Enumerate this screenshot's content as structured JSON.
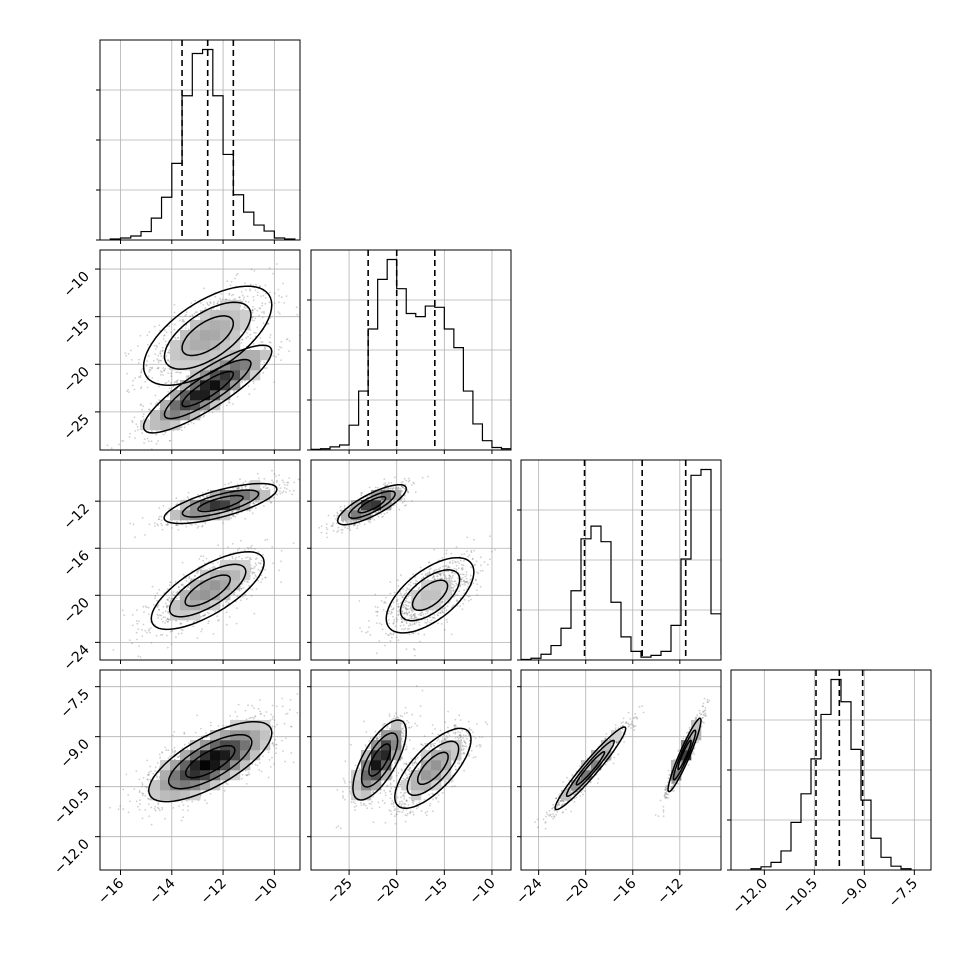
{
  "chart_data": {
    "type": "corner",
    "grid": true,
    "params": [
      {
        "range": [
          -16.8,
          -9.0
        ],
        "ticks": [
          -16,
          -14,
          -12,
          -10
        ],
        "tick_labels": [
          "−16",
          "−14",
          "−12",
          "−10"
        ],
        "quantiles": [
          -13.6,
          -12.6,
          -11.6
        ],
        "hist": {
          "edges_start": -16.4,
          "bin_width": 0.4,
          "counts": [
            0.2,
            0.4,
            0.8,
            1.7,
            4.4,
            8.6,
            15.4,
            29.0,
            37.5,
            38.3,
            29.0,
            17.2,
            9.1,
            5.6,
            3.0,
            1.8,
            0.4,
            0.2
          ]
        }
      },
      {
        "range": [
          -29.0,
          -8.0
        ],
        "ticks": [
          -25,
          -20,
          -15,
          -10
        ],
        "tick_labels": [
          "−25",
          "−20",
          "−15",
          "−10"
        ],
        "quantiles": [
          -23.0,
          -20.0,
          -16.0
        ],
        "hist": {
          "edges_start": -29.0,
          "bin_width": 1.0,
          "counts": [
            0.1,
            0.2,
            0.5,
            0.8,
            4.0,
            9.5,
            19.5,
            27.5,
            30.7,
            26.0,
            22.0,
            21.5,
            23.2,
            23.0,
            19.5,
            16.5,
            9.5,
            4.2,
            1.5,
            0.4,
            0.2
          ]
        }
      },
      {
        "range": [
          -25.5,
          -8.5
        ],
        "ticks": [
          -24,
          -20,
          -16,
          -12
        ],
        "tick_labels": [
          "−24",
          "−20",
          "−16",
          "−12"
        ],
        "quantiles": [
          -20.1,
          -15.2,
          -11.5
        ],
        "hist": {
          "edges_start": -25.5,
          "bin_width": 0.85,
          "counts": [
            0.1,
            0.3,
            1.0,
            2.5,
            5.5,
            12.0,
            21.0,
            23.2,
            20.5,
            10.0,
            4.0,
            1.5,
            0.5,
            0.8,
            1.5,
            6.0,
            17.5,
            32.0,
            33.0,
            8.0,
            1.0
          ]
        }
      },
      {
        "range": [
          -13.0,
          -7.0
        ],
        "ticks": [
          -12.0,
          -10.5,
          -9.0,
          -7.5
        ],
        "tick_labels": [
          "−12.0",
          "−10.5",
          "−9.0",
          "−7.5"
        ],
        "quantiles": [
          -10.45,
          -9.75,
          -9.05
        ],
        "hist": {
          "edges_start": -12.4,
          "bin_width": 0.3,
          "counts": [
            0.2,
            0.5,
            1.2,
            3.0,
            7.5,
            12.0,
            17.5,
            24.5,
            30.0,
            26.5,
            19.0,
            11.0,
            5.0,
            2.0,
            0.6,
            0.2
          ]
        }
      }
    ],
    "pairs": [
      {
        "row": 1,
        "col": 0,
        "clusters": [
          {
            "mx": -12.6,
            "my": -17,
            "sx": 1.25,
            "sy": 2.6,
            "rho": 0.62,
            "n": 900,
            "peak": 0.32
          },
          {
            "mx": -12.6,
            "my": -22.6,
            "sx": 1.25,
            "sy": 2.3,
            "rho": 0.86,
            "n": 1000,
            "peak": 0.95
          }
        ]
      },
      {
        "row": 2,
        "col": 0,
        "clusters": [
          {
            "mx": -12.1,
            "my": -12.2,
            "sx": 1.1,
            "sy": 0.85,
            "rho": 0.72,
            "n": 950,
            "peak": 0.8
          },
          {
            "mx": -12.6,
            "my": -19.6,
            "sx": 1.1,
            "sy": 1.65,
            "rho": 0.72,
            "n": 900,
            "peak": 0.4
          }
        ]
      },
      {
        "row": 2,
        "col": 1,
        "clusters": [
          {
            "mx": -22.6,
            "my": -12.3,
            "sx": 1.8,
            "sy": 0.85,
            "rho": 0.8,
            "n": 950,
            "peak": 0.85
          },
          {
            "mx": -16.5,
            "my": -20.0,
            "sx": 2.3,
            "sy": 1.6,
            "rho": 0.62,
            "n": 900,
            "peak": 0.22
          }
        ]
      },
      {
        "row": 3,
        "col": 0,
        "clusters": [
          {
            "mx": -12.5,
            "my": -9.75,
            "sx": 1.2,
            "sy": 0.6,
            "rho": 0.72,
            "n": 1900,
            "peak": 1.0
          }
        ]
      },
      {
        "row": 3,
        "col": 1,
        "clusters": [
          {
            "mx": -21.8,
            "my": -9.7,
            "sx": 1.4,
            "sy": 0.6,
            "rho": 0.7,
            "n": 950,
            "peak": 0.95
          },
          {
            "mx": -16.2,
            "my": -9.95,
            "sx": 2.0,
            "sy": 0.6,
            "rho": 0.72,
            "n": 950,
            "peak": 0.4
          }
        ]
      },
      {
        "row": 3,
        "col": 2,
        "clusters": [
          {
            "mx": -19.6,
            "my": -9.95,
            "sx": 1.5,
            "sy": 0.62,
            "rho": 0.96,
            "n": 950,
            "peak": 0.55
          },
          {
            "mx": -11.6,
            "my": -9.55,
            "sx": 0.7,
            "sy": 0.55,
            "rho": 0.94,
            "n": 950,
            "peak": 0.85
          }
        ]
      }
    ]
  }
}
